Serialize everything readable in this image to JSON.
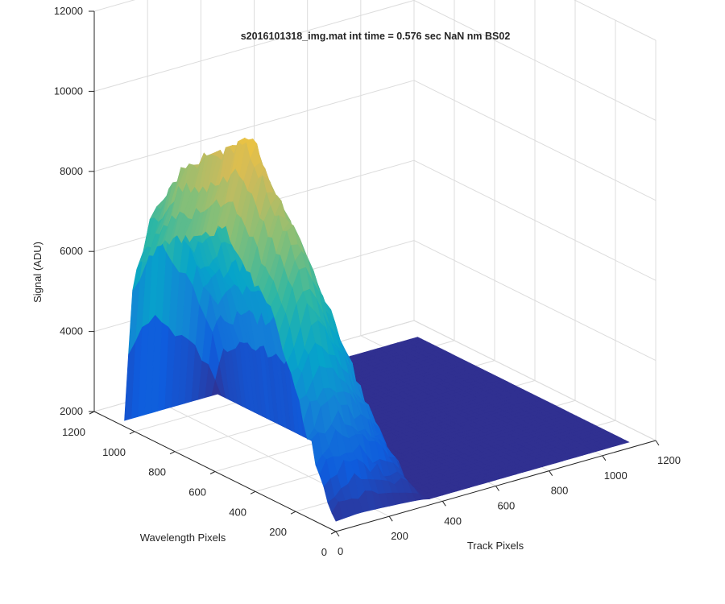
{
  "chart_data": {
    "type": "surface3d",
    "title": "s2016101318_img.mat int time = 0.576 sec  NaN nm BS02",
    "xlabel": "Track Pixels",
    "ylabel": "Wavelength Pixels",
    "zlabel": "Signal (ADU)",
    "xlim": [
      0,
      1200
    ],
    "ylim": [
      0,
      1200
    ],
    "zlim": [
      2000,
      12000
    ],
    "x_ticks": [
      "0",
      "200",
      "400",
      "600",
      "800",
      "1000",
      "1200"
    ],
    "y_ticks": [
      "0",
      "200",
      "400",
      "600",
      "800",
      "1000",
      "1200"
    ],
    "z_ticks": [
      "2000",
      "4000",
      "6000",
      "8000",
      "10000",
      "12000"
    ],
    "grid": true,
    "colormap": [
      "#352a87",
      "#0f5cdd",
      "#1481d6",
      "#06a4ca",
      "#2eb7a4",
      "#87bf77",
      "#d1bb59",
      "#fec832",
      "#f9fb0e"
    ],
    "floor_level": 2150,
    "track_extent": [
      0,
      1100
    ],
    "wavelength_extent": [
      0,
      1050
    ],
    "illuminated_track_range": [
      0,
      350
    ],
    "signal_profile_by_wavelength": [
      {
        "wavelength": 0,
        "peak": 2300
      },
      {
        "wavelength": 150,
        "peak": 5000
      },
      {
        "wavelength": 300,
        "peak": 8200
      },
      {
        "wavelength": 450,
        "peak": 9600
      },
      {
        "wavelength": 550,
        "peak": 10500
      },
      {
        "wavelength": 700,
        "peak": 9700
      },
      {
        "wavelength": 850,
        "peak": 9100
      },
      {
        "wavelength": 950,
        "peak": 8000
      },
      {
        "wavelength": 1000,
        "peak": 7700
      },
      {
        "wavelength": 1050,
        "peak": 2500
      }
    ],
    "peak_signal": 10500
  }
}
